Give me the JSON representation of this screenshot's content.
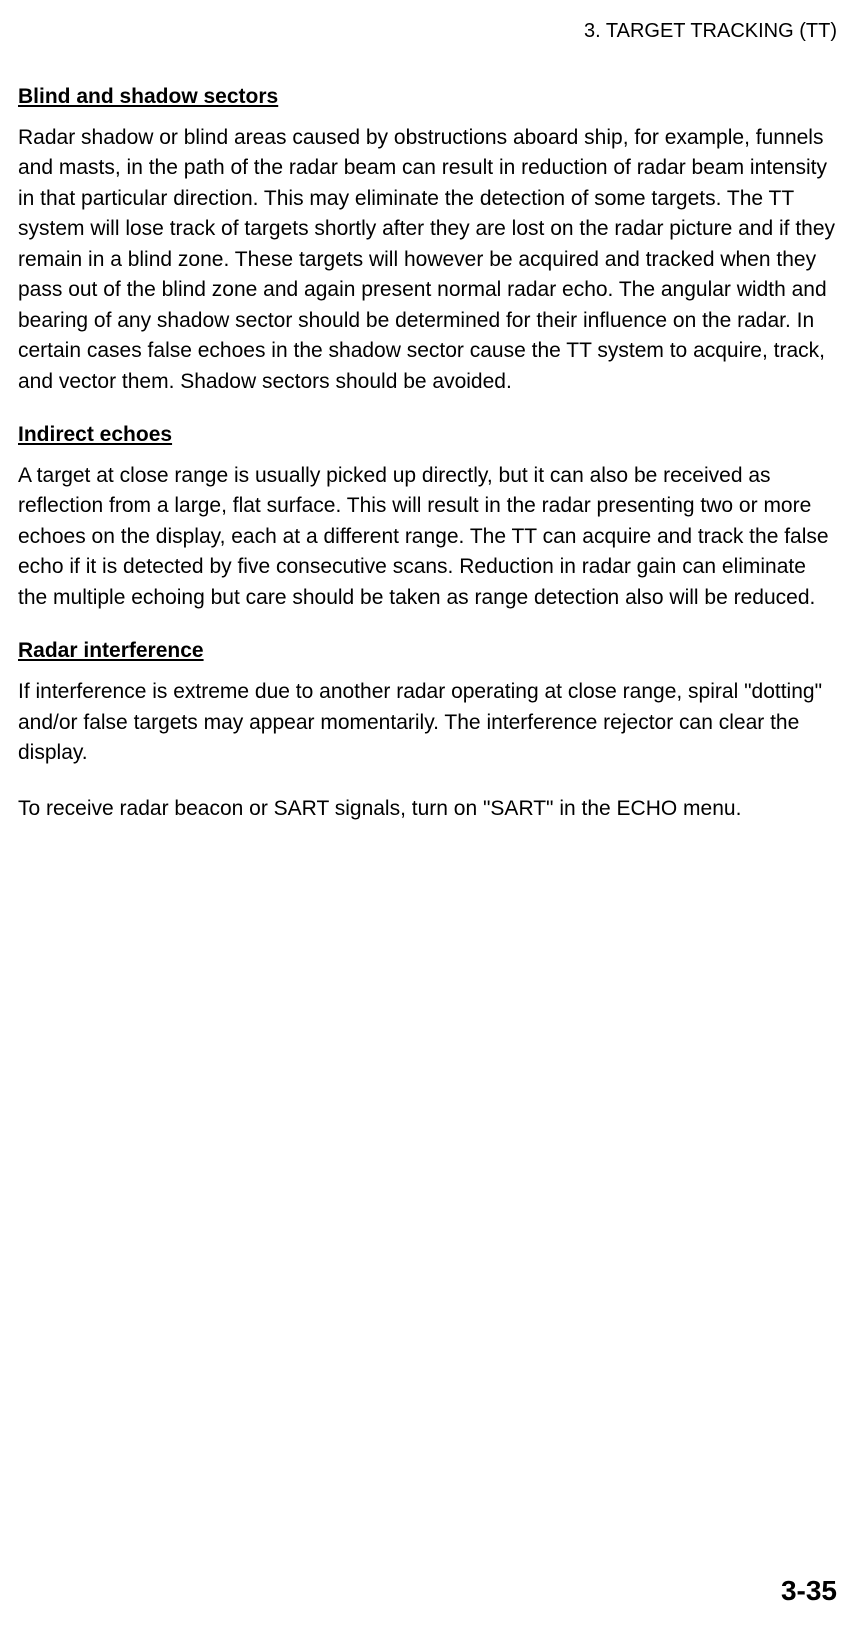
{
  "header": {
    "text": "3. TARGET TRACKING (TT)"
  },
  "sections": [
    {
      "heading": "Blind and shadow sectors",
      "body": "Radar shadow or blind areas caused by obstructions aboard ship, for example, funnels and masts, in the path of the radar beam can result in reduction of radar beam intensity in that particular direction. This may eliminate the detection of some targets. The TT system will lose track of targets shortly after they are lost on the radar picture and if they remain in a blind zone. These targets will however be acquired and tracked when they pass out of the blind zone and again present normal radar echo. The angular width and bearing of any shadow sector should be determined for their influence on the radar. In certain cases false echoes in the shadow sector cause the TT system to acquire, track, and vector them. Shadow sectors should be avoided."
    },
    {
      "heading": "Indirect echoes",
      "body": "A target at close range is usually picked up directly, but it can also be received as reflection from a large, flat surface. This will result in the radar presenting two or more echoes on the display, each at a different range. The TT can acquire and track the false echo if it is detected by five consecutive scans. Reduction in radar gain can eliminate the multiple echoing but care should be taken as range detection also will be reduced."
    },
    {
      "heading": "Radar interference",
      "body": "If interference is extreme due to another radar operating at close range, spiral \"dotting\" and/or false targets may appear momentarily. The interference rejector can clear the display."
    }
  ],
  "additional_text": "To receive radar beacon or SART signals, turn on \"SART\" in the ECHO menu.",
  "page_number": "3-35"
}
